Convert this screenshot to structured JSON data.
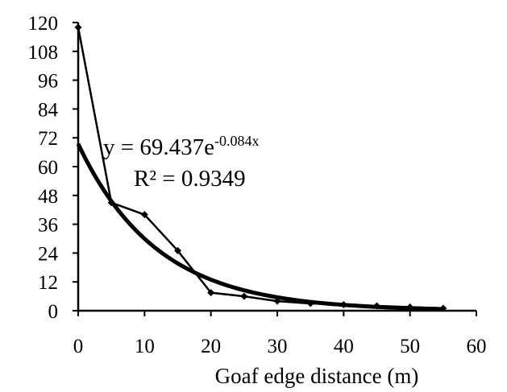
{
  "chart_data": {
    "type": "scatter",
    "xlabel": "Goaf edge distance (m)",
    "ylabel": "",
    "xlim": [
      0,
      60
    ],
    "ylim": [
      0,
      120
    ],
    "xticks": [
      "0",
      "10",
      "20",
      "30",
      "40",
      "50",
      "60"
    ],
    "yticks": [
      "0",
      "12",
      "24",
      "36",
      "48",
      "60",
      "72",
      "84",
      "96",
      "108",
      "120"
    ],
    "grid": false,
    "series": [
      {
        "kind": "line-with-markers",
        "x": [
          0,
          5,
          10,
          15,
          20,
          25,
          30,
          35,
          40,
          45,
          50,
          55
        ],
        "y": [
          118,
          45,
          40,
          25,
          7.5,
          6,
          4,
          3,
          2.5,
          2,
          1.5,
          1
        ]
      }
    ],
    "trendline": {
      "kind": "exponential",
      "a": 69.437,
      "b": -0.084,
      "x_range": [
        0,
        55
      ]
    },
    "annotation": {
      "eq_prefix": "y = 69.437e",
      "eq_exponent": "-0.084x",
      "r2": "R² = 0.9349"
    }
  }
}
